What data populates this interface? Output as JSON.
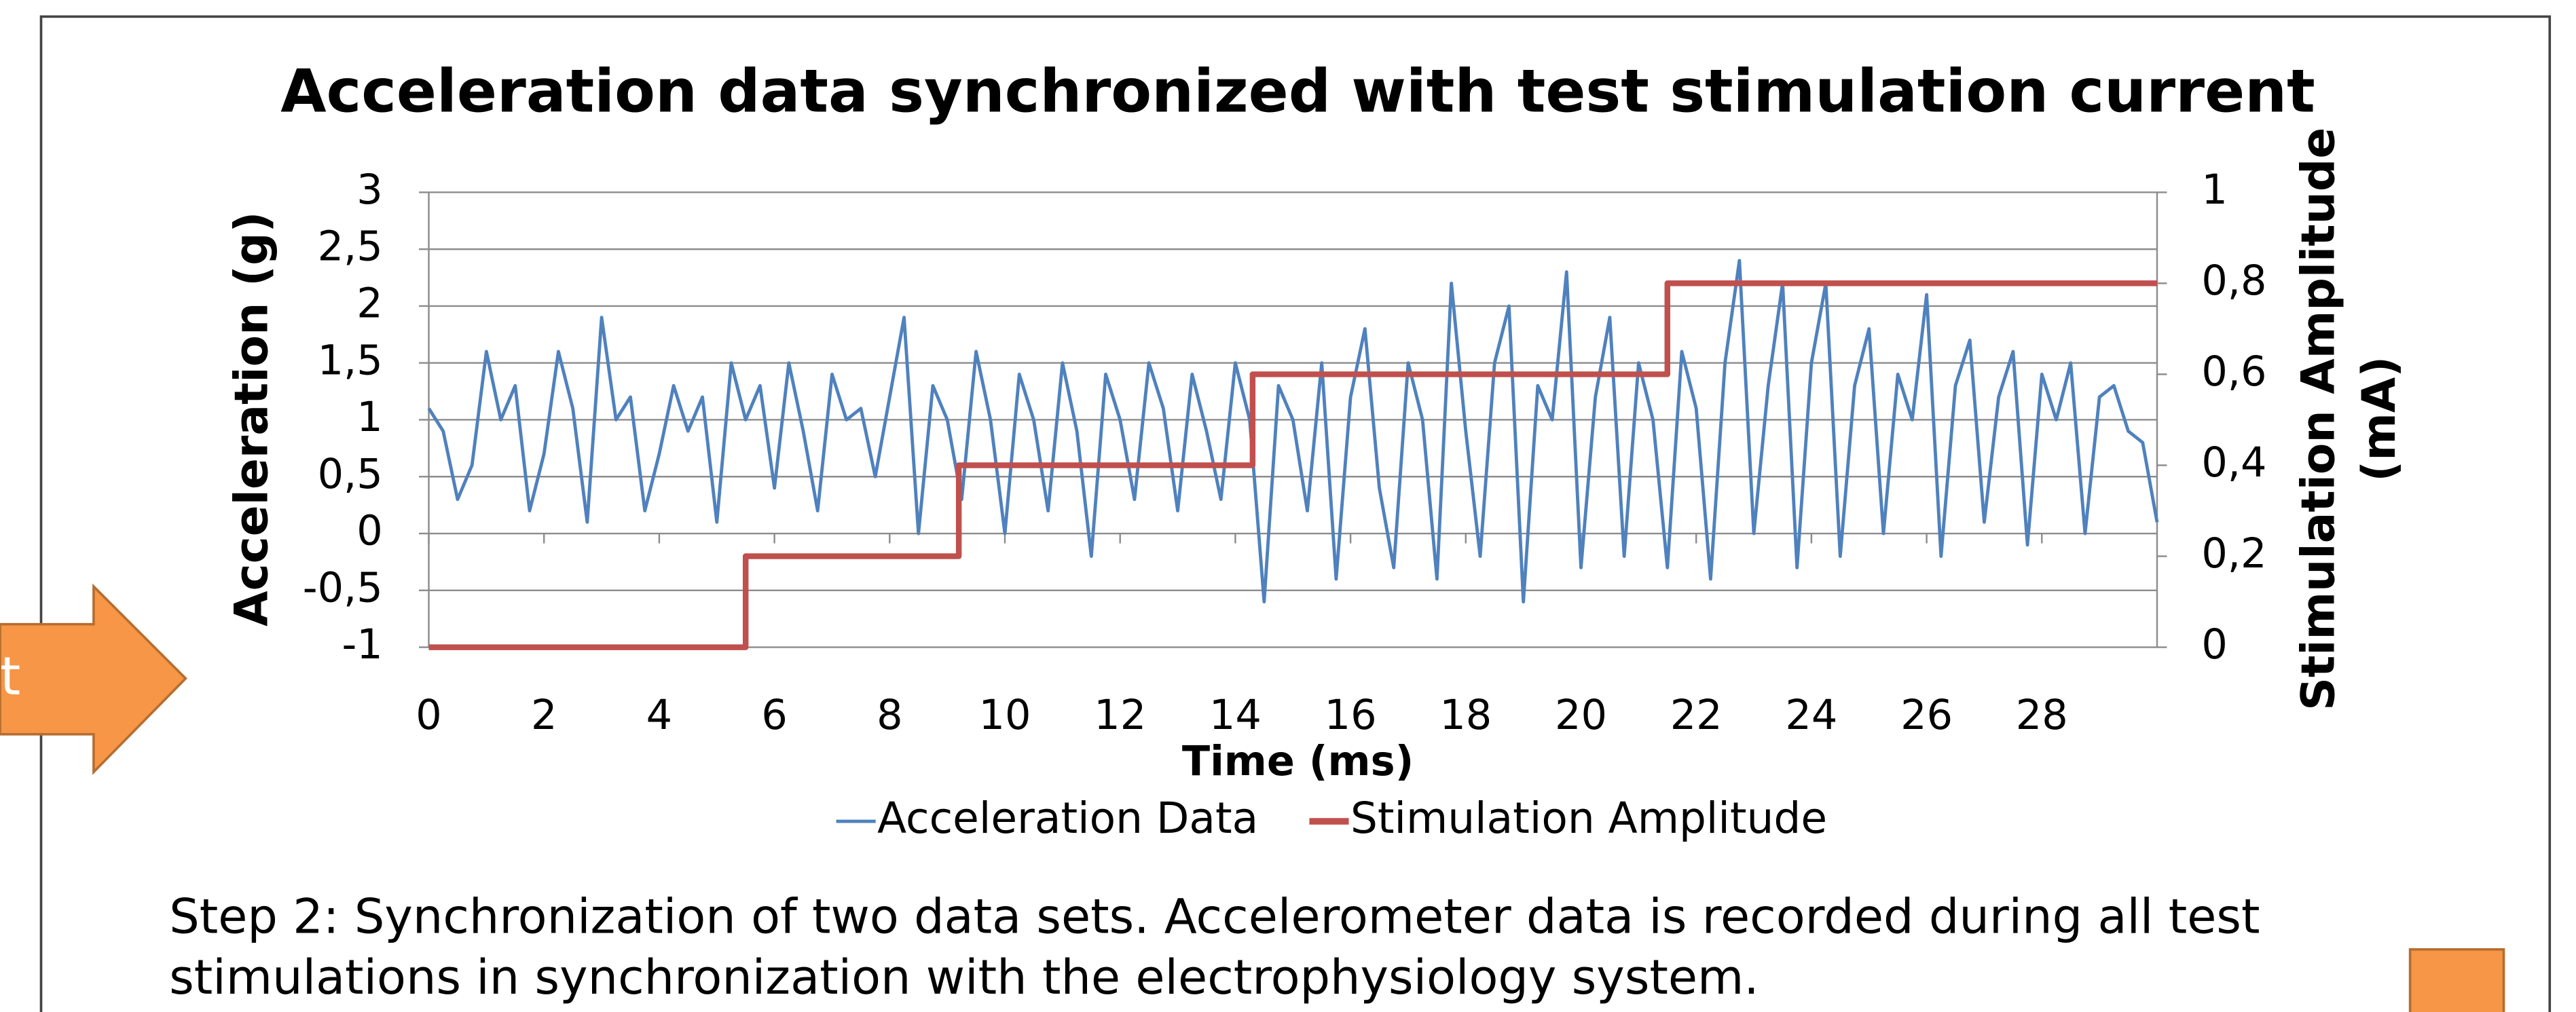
{
  "chart_data": {
    "type": "line",
    "title": "Acceleration data synchronized with test stimulation current",
    "xlabel": "Time (ms)",
    "ylabel": "Acceleration (g)",
    "y2label": [
      "Stimulation Amplitude",
      "(mA)"
    ],
    "xlim": [
      0,
      30
    ],
    "xticks": [
      0,
      2,
      4,
      6,
      8,
      10,
      12,
      14,
      16,
      18,
      20,
      22,
      24,
      26,
      28
    ],
    "ylim": [
      -1,
      3
    ],
    "yticks": [
      -1,
      {
        "value": -0.5,
        "label": "-0,5"
      },
      0,
      {
        "value": 0.5,
        "label": "0,5"
      },
      1,
      {
        "value": 1.5,
        "label": "1,5"
      },
      2,
      {
        "value": 2.5,
        "label": "2,5"
      },
      3
    ],
    "y2lim": [
      0,
      1
    ],
    "y2ticks": [
      0,
      {
        "value": 0.2,
        "label": "0,2"
      },
      {
        "value": 0.4,
        "label": "0,4"
      },
      {
        "value": 0.6,
        "label": "0,6"
      },
      {
        "value": 0.8,
        "label": "0,8"
      },
      1
    ],
    "grid": true,
    "legend": "bottom",
    "series": [
      {
        "name": "Acceleration Data",
        "color": "#4f81bd",
        "axis": "y",
        "x": [
          0,
          0.25,
          0.5,
          0.75,
          1,
          1.25,
          1.5,
          1.75,
          2,
          2.25,
          2.5,
          2.75,
          3,
          3.25,
          3.5,
          3.75,
          4,
          4.25,
          4.5,
          4.75,
          5,
          5.25,
          5.5,
          5.75,
          6,
          6.25,
          6.5,
          6.75,
          7,
          7.25,
          7.5,
          7.75,
          8,
          8.25,
          8.5,
          8.75,
          9,
          9.25,
          9.5,
          9.75,
          10,
          10.25,
          10.5,
          10.75,
          11,
          11.25,
          11.5,
          11.75,
          12,
          12.25,
          12.5,
          12.75,
          13,
          13.25,
          13.5,
          13.75,
          14,
          14.25,
          14.5,
          14.75,
          15,
          15.25,
          15.5,
          15.75,
          16,
          16.25,
          16.5,
          16.75,
          17,
          17.25,
          17.5,
          17.75,
          18,
          18.25,
          18.5,
          18.75,
          19,
          19.25,
          19.5,
          19.75,
          20,
          20.25,
          20.5,
          20.75,
          21,
          21.25,
          21.5,
          21.75,
          22,
          22.25,
          22.5,
          22.75,
          23,
          23.25,
          23.5,
          23.75,
          24,
          24.25,
          24.5,
          24.75,
          25,
          25.25,
          25.5,
          25.75,
          26,
          26.25,
          26.5,
          26.75,
          27,
          27.25,
          27.5,
          27.75,
          28,
          28.25,
          28.5,
          28.75,
          29,
          29.25,
          29.5,
          29.75,
          30
        ],
        "values": [
          1.1,
          0.9,
          0.3,
          0.6,
          1.6,
          1.0,
          1.3,
          0.2,
          0.7,
          1.6,
          1.1,
          0.1,
          1.9,
          1.0,
          1.2,
          0.2,
          0.7,
          1.3,
          0.9,
          1.2,
          0.1,
          1.5,
          1.0,
          1.3,
          0.4,
          1.5,
          0.9,
          0.2,
          1.4,
          1.0,
          1.1,
          0.5,
          1.2,
          1.9,
          0.0,
          1.3,
          1.0,
          0.3,
          1.6,
          1.0,
          0.0,
          1.4,
          1.0,
          0.2,
          1.5,
          0.9,
          -0.2,
          1.4,
          1.0,
          0.3,
          1.5,
          1.1,
          0.2,
          1.4,
          0.9,
          0.3,
          1.5,
          1.0,
          -0.6,
          1.3,
          1.0,
          0.2,
          1.5,
          -0.4,
          1.2,
          1.8,
          0.4,
          -0.3,
          1.5,
          1.0,
          -0.4,
          2.2,
          0.9,
          -0.2,
          1.5,
          2.0,
          -0.6,
          1.3,
          1.0,
          2.3,
          -0.3,
          1.2,
          1.9,
          -0.2,
          1.5,
          1.0,
          -0.3,
          1.6,
          1.1,
          -0.4,
          1.5,
          2.4,
          0.0,
          1.3,
          2.2,
          -0.3,
          1.5,
          2.2,
          -0.2,
          1.3,
          1.8,
          0.0,
          1.4,
          1.0,
          2.1,
          -0.2,
          1.3,
          1.7,
          0.1,
          1.2,
          1.6,
          -0.1,
          1.4,
          1.0,
          1.5,
          0.0,
          1.2,
          1.3,
          0.9,
          0.8,
          0.1
        ]
      },
      {
        "name": "Stimulation Amplitude",
        "color": "#c0504d",
        "axis": "y2",
        "x": [
          0,
          5.5,
          5.5,
          9.2,
          9.2,
          14.3,
          14.3,
          21.5,
          21.5,
          30
        ],
        "values": [
          0,
          0,
          0.2,
          0.2,
          0.4,
          0.4,
          0.6,
          0.6,
          0.8,
          0.8
        ]
      }
    ]
  },
  "arrow_label": "t",
  "caption": [
    "Step 2: Synchronization of two data sets.  Accelerometer data is recorded during all test",
    "stimulations in synchronization with the electrophysiology system."
  ]
}
